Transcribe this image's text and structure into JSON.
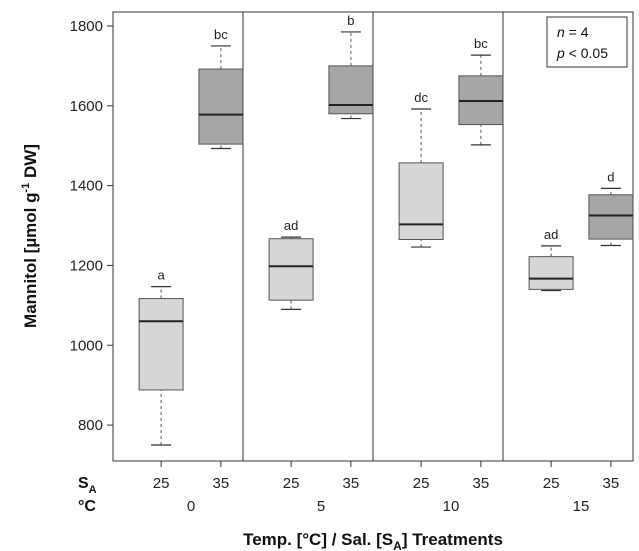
{
  "chart_data": {
    "type": "boxplot",
    "ylabel": "Mannitol [µmol g⁻¹ DW]",
    "ylabel_parts": {
      "main": "Mannitol [µmol g",
      "sup": "-1",
      "tail": " DW]"
    },
    "xlabel_parts": {
      "main": "Temp. [°C] / Sal. [S",
      "sub": "A",
      "tail": "] Treatments"
    },
    "ylim": [
      710,
      1835
    ],
    "yticks": [
      800,
      1000,
      1200,
      1400,
      1600,
      1800
    ],
    "row_labels": {
      "salinity_main": "S",
      "salinity_sub": "A",
      "temperature": "°C"
    },
    "legend": {
      "n_label": "n",
      "n_value": " = 4",
      "p_label": "p",
      "p_value": " < 0.05"
    },
    "groups": [
      {
        "temperature": "0",
        "boxes": [
          {
            "salinity": "25",
            "min": 750,
            "q1": 888,
            "median": 1060,
            "q3": 1117,
            "max": 1147,
            "letter": "a",
            "color": "#d6d6d6"
          },
          {
            "salinity": "35",
            "min": 1493,
            "q1": 1504,
            "median": 1578,
            "q3": 1692,
            "max": 1750,
            "letter": "bc",
            "color": "#a6a6a6"
          }
        ]
      },
      {
        "temperature": "5",
        "boxes": [
          {
            "salinity": "25",
            "min": 1090,
            "q1": 1113,
            "median": 1198,
            "q3": 1267,
            "max": 1271,
            "letter": "ad",
            "color": "#d6d6d6"
          },
          {
            "salinity": "35",
            "min": 1568,
            "q1": 1580,
            "median": 1602,
            "q3": 1700,
            "max": 1785,
            "letter": "b",
            "color": "#a6a6a6"
          }
        ]
      },
      {
        "temperature": "10",
        "boxes": [
          {
            "salinity": "25",
            "min": 1246,
            "q1": 1265,
            "median": 1303,
            "q3": 1457,
            "max": 1592,
            "letter": "dc",
            "color": "#d6d6d6"
          },
          {
            "salinity": "35",
            "min": 1502,
            "q1": 1553,
            "median": 1612,
            "q3": 1675,
            "max": 1727,
            "letter": "bc",
            "color": "#a6a6a6"
          }
        ]
      },
      {
        "temperature": "15",
        "boxes": [
          {
            "salinity": "25",
            "min": 1137,
            "q1": 1140,
            "median": 1167,
            "q3": 1222,
            "max": 1249,
            "letter": "ad",
            "color": "#d6d6d6"
          },
          {
            "salinity": "35",
            "min": 1250,
            "q1": 1266,
            "median": 1325,
            "q3": 1377,
            "max": 1393,
            "letter": "d",
            "color": "#a6a6a6"
          }
        ]
      }
    ],
    "grid": false,
    "legend_position": "top-right"
  }
}
